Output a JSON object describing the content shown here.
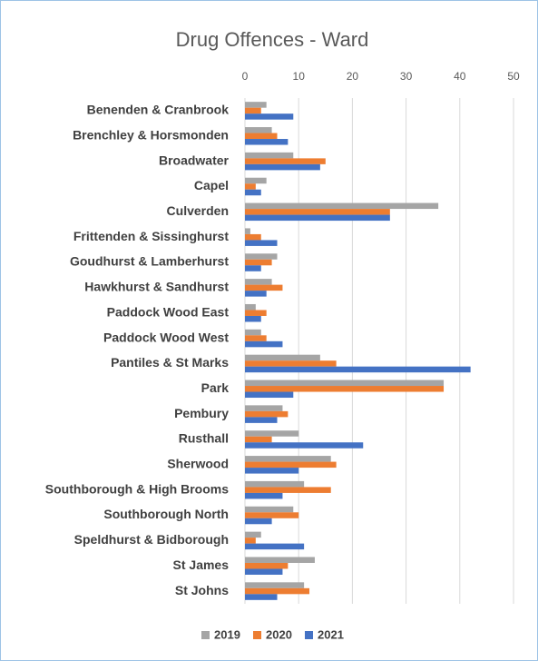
{
  "chart_data": {
    "type": "bar",
    "orientation": "horizontal",
    "title": "Drug Offences - Ward",
    "categories": [
      "Benenden & Cranbrook",
      "Brenchley & Horsmonden",
      "Broadwater",
      "Capel",
      "Culverden",
      "Frittenden & Sissinghurst",
      "Goudhurst & Lamberhurst",
      "Hawkhurst & Sandhurst",
      "Paddock Wood East",
      "Paddock Wood West",
      "Pantiles & St Marks",
      "Park",
      "Pembury",
      "Rusthall",
      "Sherwood",
      "Southborough & High Brooms",
      "Southborough North",
      "Speldhurst & Bidborough",
      "St James",
      "St Johns"
    ],
    "series": [
      {
        "name": "2019",
        "color": "#a5a5a5",
        "values": [
          4,
          5,
          9,
          4,
          36,
          1,
          6,
          5,
          2,
          3,
          14,
          37,
          7,
          10,
          16,
          11,
          9,
          3,
          13,
          11
        ]
      },
      {
        "name": "2020",
        "color": "#ed7d31",
        "values": [
          3,
          6,
          15,
          2,
          27,
          3,
          5,
          7,
          4,
          4,
          17,
          37,
          8,
          5,
          17,
          16,
          10,
          2,
          8,
          12
        ]
      },
      {
        "name": "2021",
        "color": "#4472c4",
        "values": [
          9,
          8,
          14,
          3,
          27,
          6,
          3,
          4,
          3,
          7,
          42,
          9,
          6,
          22,
          10,
          7,
          5,
          11,
          7,
          6
        ]
      }
    ],
    "xlim": [
      0,
      50
    ],
    "xticks": [
      0,
      10,
      20,
      30,
      40,
      50
    ],
    "grid": true,
    "legend": "bottom"
  }
}
